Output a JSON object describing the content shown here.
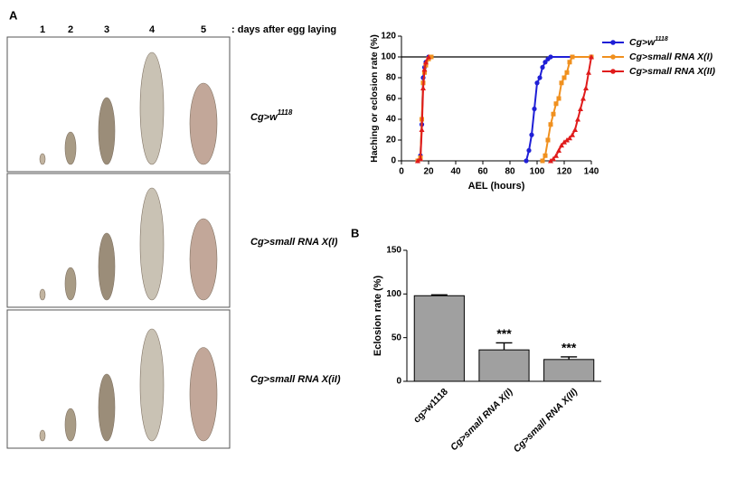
{
  "panel_a": {
    "label": "A",
    "days": [
      "1",
      "2",
      "3",
      "4",
      "5"
    ],
    "days_caption": ": days after egg laying",
    "genotypes": [
      {
        "text": "Cg>w",
        "sup": "1118"
      },
      {
        "text": "Cg>small RNA X(I)"
      },
      {
        "text": "Cg>small RNA X(iI)"
      }
    ]
  },
  "panel_b": {
    "label": "B"
  },
  "chart_data": [
    {
      "type": "line",
      "ylabel": "Haching or eclosion rate (%)",
      "xlabel": "AEL (hours)",
      "xlim": [
        0,
        140
      ],
      "xticks": [
        0,
        20,
        40,
        60,
        80,
        100,
        120,
        140
      ],
      "ylim": [
        0,
        120
      ],
      "yticks": [
        0,
        20,
        40,
        60,
        80,
        100,
        120
      ],
      "reference_line": 100,
      "series": [
        {
          "name": "Cg>w",
          "name_sup": "1118",
          "color": "#1f1fd6",
          "marker": "circle",
          "x": [
            12,
            14,
            15,
            16,
            17,
            18,
            20,
            null,
            92,
            94,
            96,
            98,
            100,
            102,
            104,
            106,
            108,
            110,
            140
          ],
          "values": [
            0,
            5,
            35,
            80,
            90,
            95,
            100,
            null,
            0,
            10,
            25,
            50,
            75,
            80,
            90,
            95,
            98,
            100,
            100
          ]
        },
        {
          "name": "Cg>small RNA X(I)",
          "color": "#f0901e",
          "marker": "square",
          "x": [
            12,
            14,
            15,
            16,
            17,
            18,
            20,
            22,
            null,
            104,
            106,
            108,
            110,
            112,
            114,
            116,
            118,
            120,
            122,
            124,
            126,
            140
          ],
          "values": [
            0,
            3,
            40,
            75,
            85,
            92,
            98,
            100,
            null,
            0,
            5,
            20,
            35,
            45,
            55,
            60,
            75,
            80,
            85,
            95,
            100,
            100
          ]
        },
        {
          "name": "Cg>small RNA X(II)",
          "color": "#e01b1b",
          "marker": "triangle",
          "x": [
            12,
            14,
            15,
            16,
            17,
            18,
            20,
            null,
            110,
            112,
            114,
            116,
            118,
            120,
            122,
            124,
            126,
            128,
            130,
            132,
            134,
            136,
            138,
            140
          ],
          "values": [
            0,
            2,
            30,
            70,
            88,
            95,
            100,
            null,
            0,
            2,
            5,
            10,
            15,
            18,
            20,
            22,
            25,
            30,
            40,
            50,
            60,
            70,
            85,
            100
          ]
        }
      ]
    },
    {
      "type": "bar",
      "ylabel": "Eclosion rate (%)",
      "categories": [
        "cg>w1118",
        "Cg>small RNA X(I)",
        "Cg>small RNA X(II)"
      ],
      "values": [
        98,
        36,
        25
      ],
      "errors": [
        1,
        8,
        3
      ],
      "significance": [
        null,
        "***",
        "***"
      ],
      "color": "#a0a0a0",
      "ylim": [
        0,
        150
      ],
      "yticks": [
        0,
        50,
        100,
        150
      ]
    }
  ]
}
